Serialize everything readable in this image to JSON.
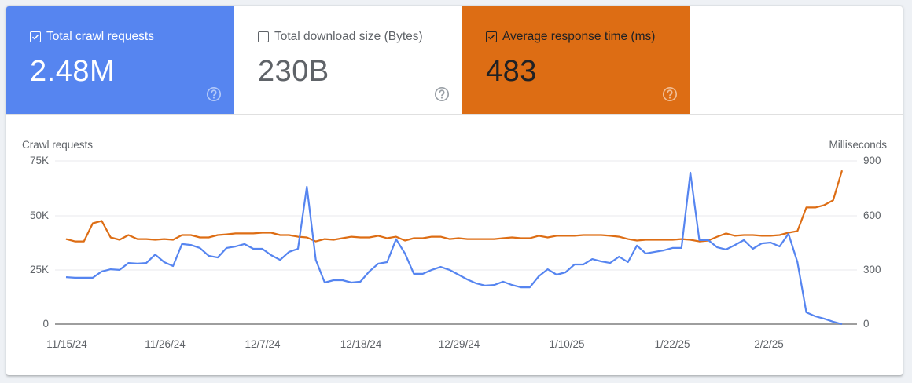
{
  "metrics": [
    {
      "label": "Total crawl requests",
      "value": "2.48M",
      "checked": true,
      "color": "#5685f0",
      "help_icon": "help-circle-icon"
    },
    {
      "label": "Total download size (Bytes)",
      "value": "230B",
      "checked": false,
      "color": "#ffffff",
      "help_icon": "help-circle-icon"
    },
    {
      "label": "Average response time (ms)",
      "value": "483",
      "checked": true,
      "color": "#dd6d14",
      "help_icon": "help-circle-icon"
    }
  ],
  "chart": {
    "left_axis_title": "Crawl requests",
    "right_axis_title": "Milliseconds",
    "left_ticks": [
      "75K",
      "50K",
      "25K",
      "0"
    ],
    "right_ticks": [
      "900",
      "600",
      "300",
      "0"
    ],
    "x_ticks": [
      "11/15/24",
      "11/26/24",
      "12/7/24",
      "12/18/24",
      "12/29/24",
      "1/10/25",
      "1/22/25",
      "2/2/25"
    ]
  },
  "chart_data": {
    "type": "line",
    "title": "",
    "x_start": "11/15/24",
    "x_end": "2/10/25",
    "x_tick_labels": [
      "11/15/24",
      "11/26/24",
      "12/7/24",
      "12/18/24",
      "12/29/24",
      "1/10/25",
      "1/22/25",
      "2/2/25"
    ],
    "y_left": {
      "label": "Crawl requests",
      "range": [
        0,
        75000
      ],
      "ticks": [
        0,
        25000,
        50000,
        75000
      ]
    },
    "y_right": {
      "label": "Milliseconds",
      "range": [
        0,
        900
      ],
      "ticks": [
        0,
        300,
        600,
        900
      ]
    },
    "grid": true,
    "series": [
      {
        "name": "Total crawl requests",
        "axis": "left",
        "color": "#5685f0",
        "values": [
          21600,
          21300,
          21300,
          21300,
          24200,
          25200,
          24900,
          28100,
          27800,
          28100,
          32000,
          28500,
          26700,
          36800,
          36400,
          35000,
          31400,
          30600,
          35000,
          35700,
          36800,
          34600,
          34600,
          31700,
          29500,
          33200,
          34600,
          63100,
          29500,
          19100,
          20200,
          20200,
          19100,
          19500,
          24200,
          27800,
          28500,
          39000,
          32500,
          23100,
          23100,
          24900,
          26300,
          24900,
          22700,
          20500,
          18700,
          17700,
          18000,
          19500,
          18000,
          16900,
          16900,
          22000,
          25200,
          22700,
          23800,
          27400,
          27400,
          29900,
          28800,
          28100,
          31000,
          28500,
          36100,
          32500,
          33200,
          33900,
          35000,
          35000,
          69600,
          38600,
          38600,
          35300,
          34300,
          36400,
          38600,
          34600,
          37100,
          37500,
          35700,
          41500,
          28500,
          5400,
          3600,
          2500,
          1100,
          0
        ]
      },
      {
        "name": "Average response time",
        "axis": "right",
        "color": "#dd6d14",
        "values": [
          469,
          456,
          456,
          556,
          569,
          478,
          465,
          491,
          469,
          469,
          465,
          469,
          465,
          491,
          491,
          478,
          478,
          491,
          495,
          500,
          500,
          500,
          504,
          504,
          491,
          491,
          482,
          478,
          456,
          469,
          465,
          474,
          482,
          478,
          478,
          487,
          474,
          482,
          461,
          474,
          474,
          482,
          482,
          469,
          474,
          469,
          469,
          469,
          469,
          474,
          478,
          474,
          474,
          487,
          478,
          487,
          487,
          487,
          491,
          491,
          491,
          487,
          482,
          469,
          461,
          465,
          465,
          465,
          465,
          469,
          465,
          456,
          461,
          482,
          500,
          487,
          491,
          491,
          487,
          487,
          491,
          504,
          513,
          643,
          643,
          656,
          683,
          847
        ]
      }
    ]
  }
}
